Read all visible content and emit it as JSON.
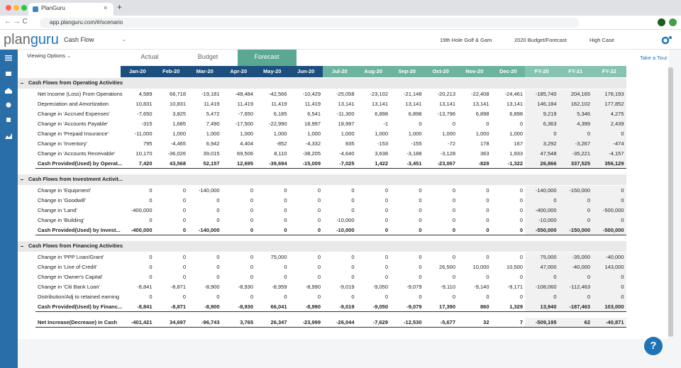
{
  "browser": {
    "tab_title": "PlanGuru",
    "url": "app.planguru.com/#/scenario"
  },
  "header": {
    "logo": [
      "plan",
      "guru"
    ],
    "report": "Cash Flow",
    "company": "19th Hole Golf & Gam",
    "scenario_set": "2020 Budget/Forecast",
    "case": "High Case"
  },
  "toolbar": {
    "viewing_options": "Viewing Options",
    "tabs": [
      "Actual",
      "Budget",
      "Forecast"
    ],
    "take_a_tour": "Take a Tour"
  },
  "table": {
    "columns": [
      "Jan-20",
      "Feb-20",
      "Mar-20",
      "Apr-20",
      "May-20",
      "Jun-20",
      "Jul-20",
      "Aug-20",
      "Sep-20",
      "Oct-20",
      "Nov-20",
      "Dec-20",
      "FY-20",
      "FY-21",
      "FY-22"
    ],
    "sections": [
      {
        "title": "Cash Flows from Operating Activities",
        "rows": [
          {
            "label": "Net Income (Loss) From Operations",
            "values": [
              "4,589",
              "66,718",
              "-19,181",
              "-48,484",
              "-42,566",
              "-10,429",
              "-25,058",
              "-23,102",
              "-21,148",
              "-20,213",
              "-22,408",
              "-24,461",
              "-185,740",
              "204,165",
              "176,193"
            ]
          },
          {
            "label": "Depreciation and Amortization",
            "values": [
              "10,831",
              "10,831",
              "11,419",
              "11,419",
              "11,419",
              "11,419",
              "13,141",
              "13,141",
              "13,141",
              "13,141",
              "13,141",
              "13,141",
              "146,184",
              "162,102",
              "177,852"
            ]
          },
          {
            "label": "Change in 'Accrued Expenses'",
            "values": [
              "-7,650",
              "3,825",
              "5,472",
              "-7,650",
              "6,185",
              "6,541",
              "-11,300",
              "6,898",
              "6,898",
              "-13,796",
              "6,898",
              "6,898",
              "9,219",
              "5,346",
              "4,275"
            ]
          },
          {
            "label": "Change in 'Accounts Payable'",
            "values": [
              "-315",
              "1,685",
              "7,490",
              "-17,500",
              "-22,990",
              "18,997",
              "18,997",
              "-1",
              "0",
              "0",
              "0",
              "0",
              "6,363",
              "4,399",
              "2,439"
            ]
          },
          {
            "label": "Change in 'Prepaid Insurance'",
            "values": [
              "-11,000",
              "1,000",
              "1,000",
              "1,000",
              "1,000",
              "1,000",
              "1,000",
              "1,000",
              "1,000",
              "1,000",
              "1,000",
              "1,000",
              "0",
              "0",
              "0"
            ]
          },
          {
            "label": "Change in 'Inventory'",
            "values": [
              "795",
              "-4,465",
              "6,942",
              "4,404",
              "-852",
              "-4,332",
              "835",
              "-153",
              "-155",
              "-72",
              "178",
              "167",
              "3,292",
              "-3,267",
              "-474"
            ]
          },
          {
            "label": "Change in 'Accounts Receivable'",
            "values": [
              "10,170",
              "-36,026",
              "39,015",
              "69,506",
              "8,110",
              "-38,205",
              "-4,640",
              "3,638",
              "-3,188",
              "-3,128",
              "363",
              "1,933",
              "47,548",
              "-35,221",
              "-4,157"
            ]
          }
        ],
        "total": {
          "label": "Cash Provided(Used) by Operat...",
          "values": [
            "7,420",
            "43,568",
            "52,157",
            "12,695",
            "-39,694",
            "-15,009",
            "-7,025",
            "1,422",
            "-3,451",
            "-23,067",
            "-828",
            "-1,322",
            "26,866",
            "337,525",
            "356,129"
          ]
        }
      },
      {
        "title": "Cash Flows from Investment Activit...",
        "rows": [
          {
            "label": "Change in 'Equipment'",
            "values": [
              "0",
              "0",
              "-140,000",
              "0",
              "0",
              "0",
              "0",
              "0",
              "0",
              "0",
              "0",
              "0",
              "-140,000",
              "-150,000",
              "0"
            ]
          },
          {
            "label": "Change in 'Goodwill'",
            "values": [
              "0",
              "0",
              "0",
              "0",
              "0",
              "0",
              "0",
              "0",
              "0",
              "0",
              "0",
              "0",
              "0",
              "0",
              "0"
            ]
          },
          {
            "label": "Change in 'Land'",
            "values": [
              "-400,000",
              "0",
              "0",
              "0",
              "0",
              "0",
              "0",
              "0",
              "0",
              "0",
              "0",
              "0",
              "-400,000",
              "0",
              "-500,000"
            ]
          },
          {
            "label": "Change in 'Building'",
            "values": [
              "0",
              "0",
              "0",
              "0",
              "0",
              "0",
              "-10,000",
              "0",
              "0",
              "0",
              "0",
              "0",
              "-10,000",
              "0",
              "0"
            ]
          }
        ],
        "total": {
          "label": "Cash Provided(Used) by Invest...",
          "values": [
            "-400,000",
            "0",
            "-140,000",
            "0",
            "0",
            "0",
            "-10,000",
            "0",
            "0",
            "0",
            "0",
            "0",
            "-550,000",
            "-150,000",
            "-500,000"
          ]
        }
      },
      {
        "title": "Cash Flows from Financing Activities",
        "rows": [
          {
            "label": "Change in 'PPP Loan/Grant'",
            "values": [
              "0",
              "0",
              "0",
              "0",
              "75,000",
              "0",
              "0",
              "0",
              "0",
              "0",
              "0",
              "0",
              "75,000",
              "-35,000",
              "-40,000"
            ]
          },
          {
            "label": "Change in 'Line of Credit'",
            "values": [
              "0",
              "0",
              "0",
              "0",
              "0",
              "0",
              "0",
              "0",
              "0",
              "26,500",
              "10,000",
              "10,500",
              "47,000",
              "-40,000",
              "143,000"
            ]
          },
          {
            "label": "Change in 'Owner's Capital'",
            "values": [
              "0",
              "0",
              "0",
              "0",
              "0",
              "0",
              "0",
              "0",
              "0",
              "0",
              "0",
              "0",
              "0",
              "0",
              "0"
            ]
          },
          {
            "label": "Change in 'Citi Bank Loan'",
            "values": [
              "-8,841",
              "-8,871",
              "-8,900",
              "-8,930",
              "-8,959",
              "-8,990",
              "-9,019",
              "-9,050",
              "-9,079",
              "-9,110",
              "-9,140",
              "-9,171",
              "-108,060",
              "-112,463",
              "0"
            ]
          },
          {
            "label": "Distribution/Adj to retained earning",
            "values": [
              "0",
              "0",
              "0",
              "0",
              "0",
              "0",
              "0",
              "0",
              "0",
              "0",
              "0",
              "0",
              "0",
              "0",
              "0"
            ]
          }
        ],
        "total": {
          "label": "Cash Provided(Used) by Financ...",
          "values": [
            "-8,841",
            "-8,871",
            "-8,900",
            "-8,930",
            "66,041",
            "-8,990",
            "-9,019",
            "-9,050",
            "-9,079",
            "17,390",
            "860",
            "1,329",
            "13,940",
            "-187,463",
            "103,000"
          ]
        }
      }
    ],
    "net": {
      "label": "Net Increase(Decrease) in Cash",
      "values": [
        "-401,421",
        "34,697",
        "-96,743",
        "3,765",
        "26,347",
        "-23,999",
        "-26,044",
        "-7,629",
        "-12,530",
        "-5,677",
        "32",
        "7",
        "-509,195",
        "62",
        "-40,871"
      ]
    }
  },
  "help": "?"
}
